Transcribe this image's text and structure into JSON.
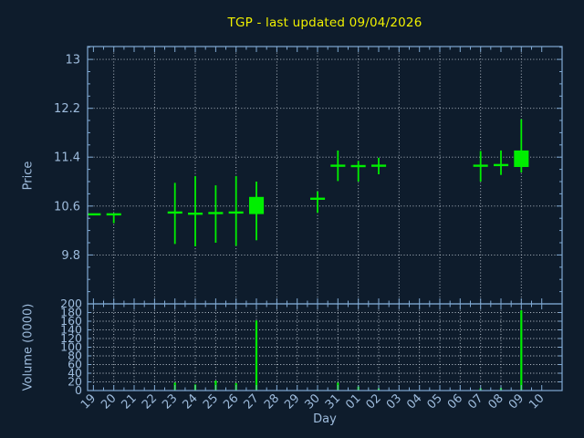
{
  "title": "TGP - last updated 09/04/2026",
  "axes": {
    "x_label": "Day",
    "price_label": "Price",
    "volume_label": "Volume (0000)"
  },
  "chart_data": {
    "type": "candlestick",
    "title": "TGP - last updated 09/04/2026",
    "xlabel": "Day",
    "x_labels": [
      "19",
      "20",
      "21",
      "22",
      "23",
      "24",
      "25",
      "26",
      "27",
      "28",
      "29",
      "30",
      "31",
      "01",
      "02",
      "03",
      "04",
      "05",
      "06",
      "07",
      "08",
      "09",
      "10"
    ],
    "price": {
      "ylabel": "Price",
      "ylim": [
        9.0,
        13.21
      ],
      "yticks": [
        9.8,
        10.6,
        11.4,
        12.2,
        13
      ],
      "grid": "dotted; vertical gridline every 2 days starting at day 20"
    },
    "volume": {
      "ylabel": "Volume (0000)",
      "ylim": [
        0,
        200
      ],
      "yticks": [
        0,
        20,
        40,
        60,
        80,
        100,
        120,
        140,
        160,
        180,
        200
      ],
      "grid": "dotted; vertical gridline every day"
    },
    "series": [
      {
        "day": "19",
        "open": 10.46,
        "high": 10.47,
        "low": 10.45,
        "close": 10.47,
        "volume": 0
      },
      {
        "day": "20",
        "open": 10.46,
        "high": 10.47,
        "low": 10.32,
        "close": 10.47,
        "volume": 0
      },
      {
        "day": "23",
        "open": 10.49,
        "high": 10.98,
        "low": 9.98,
        "close": 10.5,
        "volume": 18
      },
      {
        "day": "24",
        "open": 10.47,
        "high": 11.09,
        "low": 9.94,
        "close": 10.48,
        "volume": 14
      },
      {
        "day": "25",
        "open": 10.48,
        "high": 10.94,
        "low": 10.0,
        "close": 10.49,
        "volume": 23
      },
      {
        "day": "26",
        "open": 10.49,
        "high": 11.09,
        "low": 9.95,
        "close": 10.5,
        "volume": 17
      },
      {
        "day": "27",
        "open": 10.47,
        "high": 11.0,
        "low": 10.04,
        "close": 10.75,
        "volume": 162
      },
      {
        "day": "30",
        "open": 10.71,
        "high": 10.84,
        "low": 10.49,
        "close": 10.73,
        "volume": 2
      },
      {
        "day": "31",
        "open": 11.25,
        "high": 11.51,
        "low": 11.01,
        "close": 11.27,
        "volume": 18
      },
      {
        "day": "01",
        "open": 11.25,
        "high": 11.34,
        "low": 11.0,
        "close": 11.26,
        "volume": 9
      },
      {
        "day": "02",
        "open": 11.25,
        "high": 11.39,
        "low": 11.12,
        "close": 11.27,
        "volume": 5
      },
      {
        "day": "07",
        "open": 11.25,
        "high": 11.5,
        "low": 11.0,
        "close": 11.27,
        "volume": 5
      },
      {
        "day": "08",
        "open": 11.26,
        "high": 11.51,
        "low": 11.11,
        "close": 11.28,
        "volume": 6
      },
      {
        "day": "09",
        "open": 11.24,
        "high": 12.02,
        "low": 11.15,
        "close": 11.51,
        "volume": 185
      }
    ],
    "colors": {
      "up": "#00ef00",
      "grid": "#c9d2dc",
      "axis": "#7fa8d2",
      "tick_label": "#9dbbdc",
      "title": "#f0f000",
      "background": "#0e1c2c"
    }
  }
}
